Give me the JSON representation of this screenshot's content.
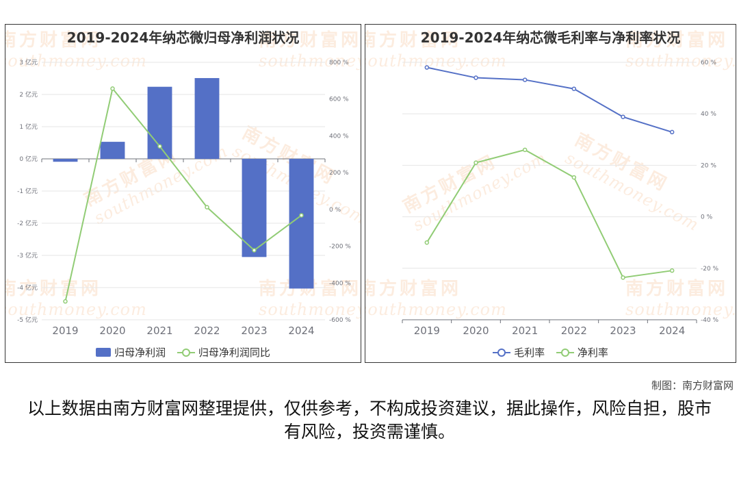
{
  "chart_data": [
    {
      "type": "bar",
      "title": "2019-2024年纳芯微归母净利润状况",
      "categories": [
        "2019",
        "2020",
        "2021",
        "2022",
        "2023",
        "2024"
      ],
      "y_left": {
        "ticks": [
          3,
          2,
          1,
          0,
          -1,
          -2,
          -3,
          -4,
          -5
        ],
        "tick_labels": [
          "3 亿元",
          "2 亿元",
          "1 亿元",
          "0 亿元",
          "-1 亿元",
          "-2 亿元",
          "-3 亿元",
          "-4 亿元",
          "-5 亿元"
        ],
        "range": [
          -5,
          3
        ]
      },
      "y_right": {
        "ticks": [
          800,
          600,
          400,
          200,
          0,
          -200,
          -400,
          -600
        ],
        "tick_labels": [
          "800 %",
          "600 %",
          "400 %",
          "200 %",
          "0 %",
          "-200 %",
          "-400 %",
          "-600 %"
        ],
        "range": [
          -600,
          800
        ]
      },
      "series": [
        {
          "name": "归母净利润",
          "kind": "bar",
          "axis": "left",
          "color": "#5470c6",
          "values": [
            -0.09,
            0.53,
            2.24,
            2.51,
            -3.05,
            -4.03
          ]
        },
        {
          "name": "归母净利润同比",
          "kind": "line",
          "axis": "right",
          "color": "#91cc75",
          "values": [
            -500,
            657,
            343,
            12,
            -222,
            -32
          ]
        }
      ],
      "legend_position": "bottom"
    },
    {
      "type": "line",
      "title": "2019-2024年纳芯微毛利率与净利率状况",
      "categories": [
        "2019",
        "2020",
        "2021",
        "2022",
        "2023",
        "2024"
      ],
      "y_right": {
        "ticks": [
          60,
          40,
          20,
          0,
          -20,
          -40
        ],
        "tick_labels": [
          "60 %",
          "40 %",
          "20 %",
          "0 %",
          "-20 %",
          "-40 %"
        ],
        "range": [
          -40,
          60
        ]
      },
      "series": [
        {
          "name": "毛利率",
          "kind": "line",
          "axis": "right",
          "color": "#5470c6",
          "values": [
            58,
            54,
            53.2,
            49.7,
            38.8,
            32.9
          ]
        },
        {
          "name": "净利率",
          "kind": "line",
          "axis": "right",
          "color": "#91cc75",
          "values": [
            -10,
            21,
            26,
            15.3,
            -23.6,
            -20.9
          ]
        }
      ],
      "legend_position": "bottom"
    }
  ],
  "watermark": {
    "text": "南方财富网",
    "sub": "southmoney.com"
  },
  "credit": "制图：南方财富网",
  "disclaimer": "以上数据由南方财富网整理提供，仅供参考，不构成投资建议，据此操作，风险自担，股市有风险，投资需谨慎。"
}
